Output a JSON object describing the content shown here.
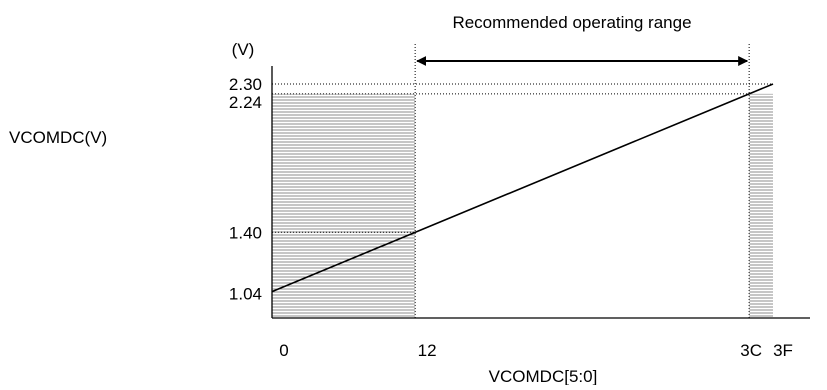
{
  "chart_data": {
    "type": "line",
    "title": "",
    "xlabel": "VCOMDC[5:0]",
    "ylabel": "VCOMDC(V)",
    "y_unit": "(V)",
    "annotation": "Recommended operating range",
    "x_tick_labels": [
      "0",
      "12",
      "3C",
      "3F"
    ],
    "y_tick_labels": [
      "2.30",
      "2.24",
      "1.40",
      "1.04"
    ],
    "x_ticks": [
      0,
      18,
      60,
      63
    ],
    "y_ticks": [
      2.3,
      2.24,
      1.4,
      1.04
    ],
    "series": [
      {
        "x": [
          0,
          63
        ],
        "y": [
          1.04,
          2.3
        ]
      }
    ],
    "recommended_range": [
      18,
      60
    ],
    "out_of_range_shading": [
      [
        0,
        18
      ],
      [
        60,
        63
      ]
    ],
    "xlim": [
      0,
      63
    ],
    "ylim": [
      0.88,
      2.3
    ],
    "grid": "dotted reference lines",
    "colors": {
      "line": "#000000",
      "shading": "#808080",
      "axis": "#000000"
    }
  }
}
